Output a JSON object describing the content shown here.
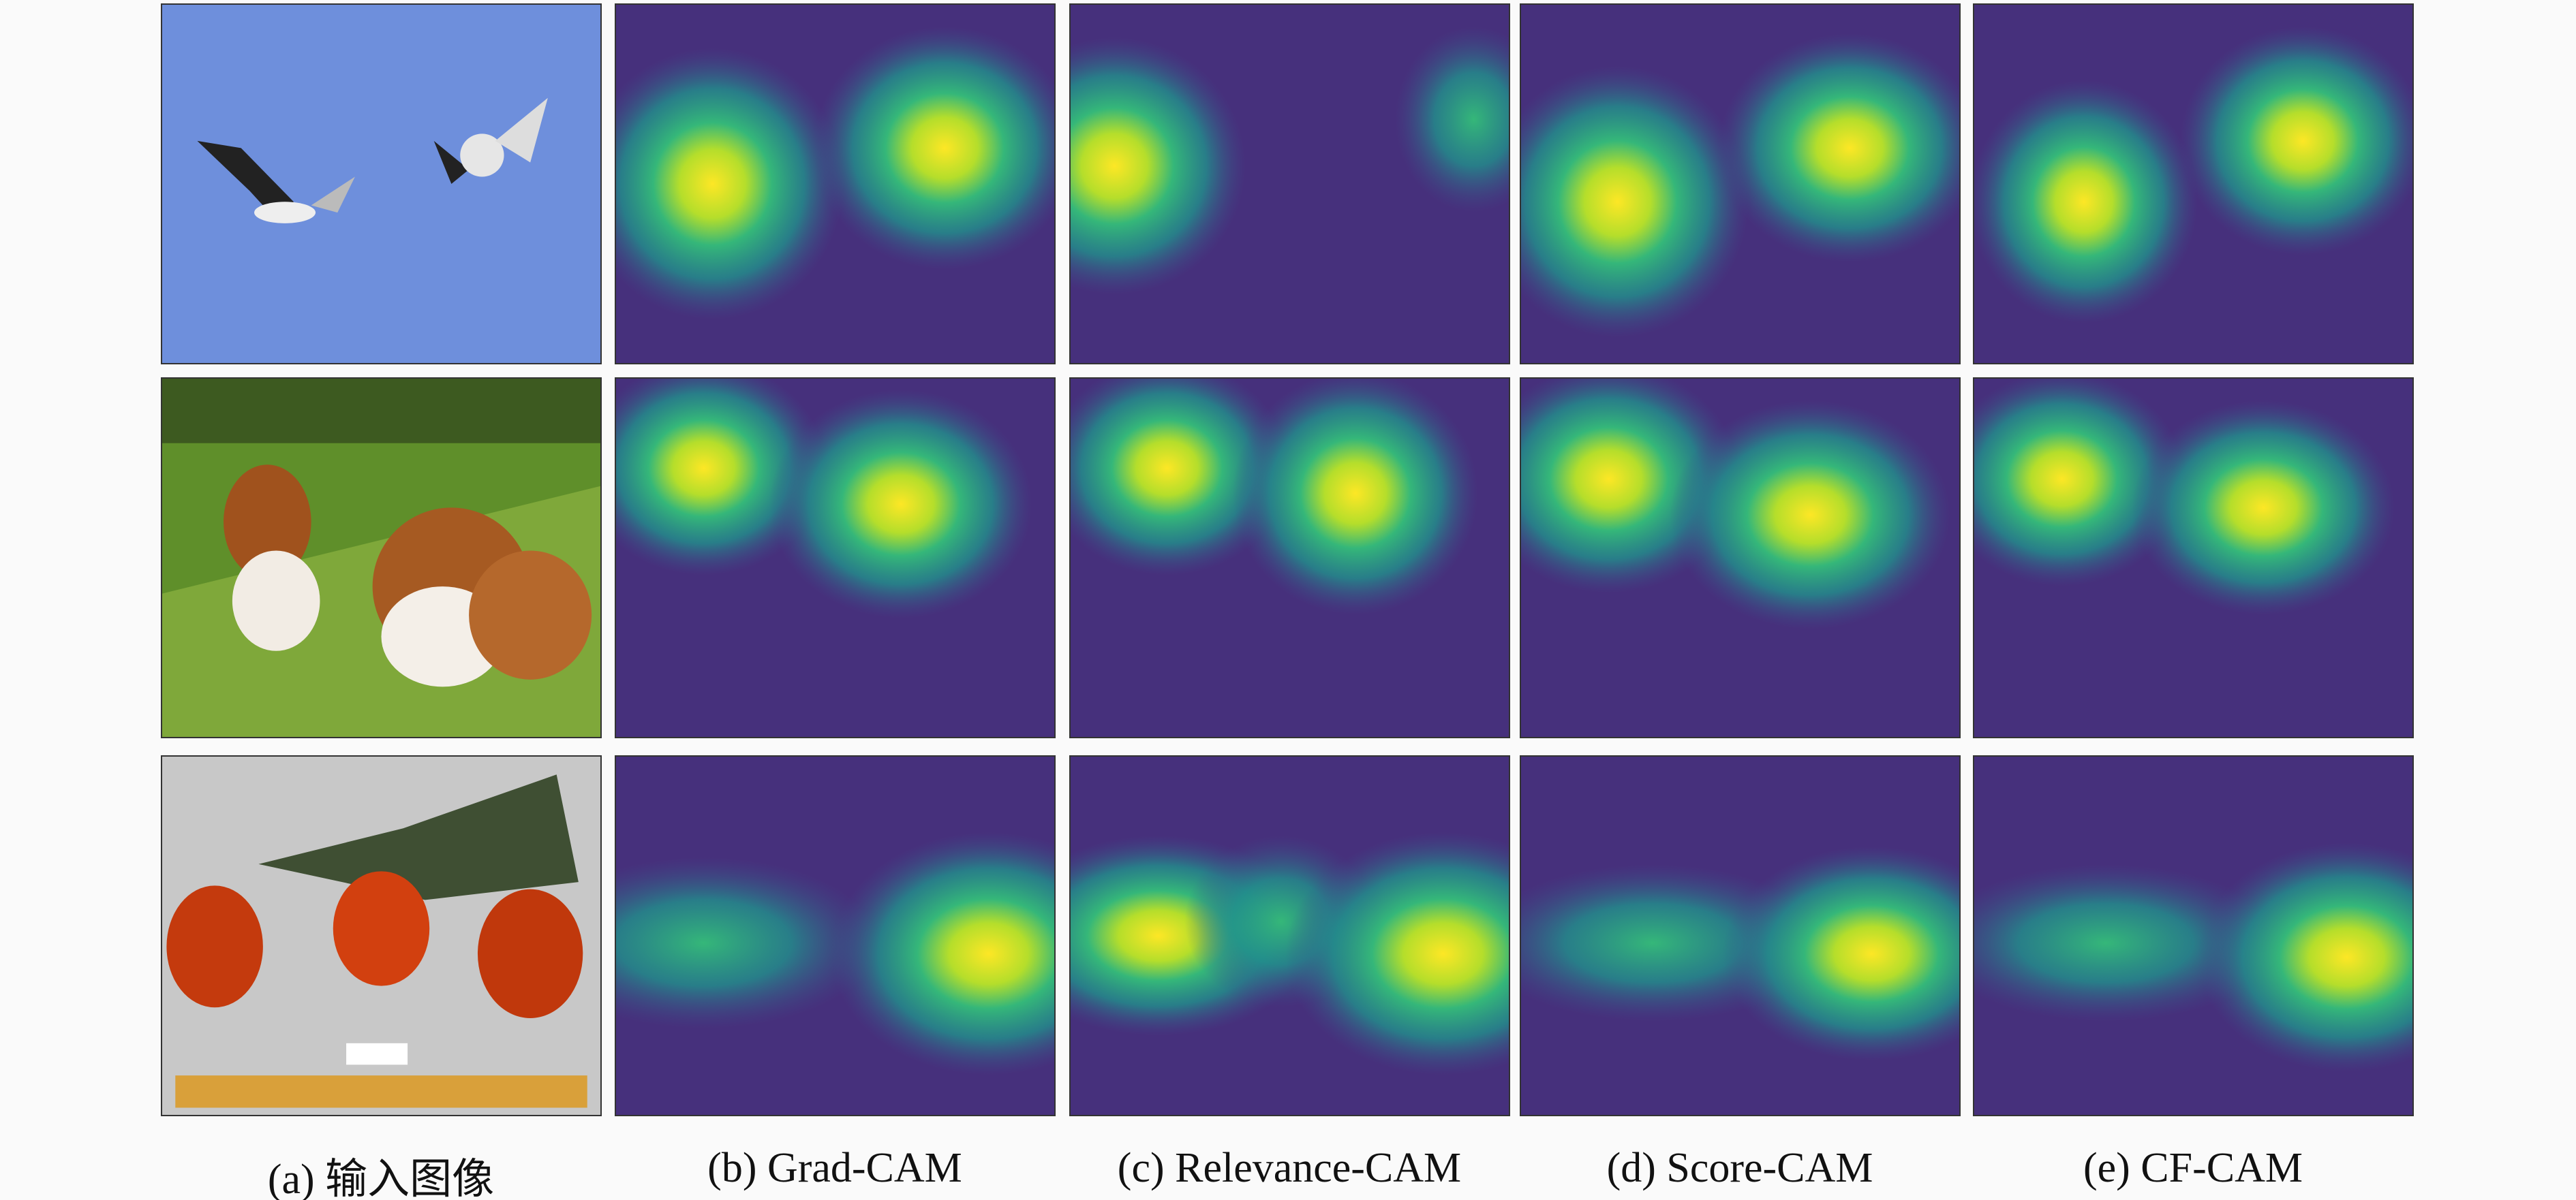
{
  "captions": [
    "(a) 输入图像",
    "(b) Grad-CAM",
    "(c) Relevance-CAM",
    "(d) Score-CAM",
    "(e) CF-CAM"
  ]
}
